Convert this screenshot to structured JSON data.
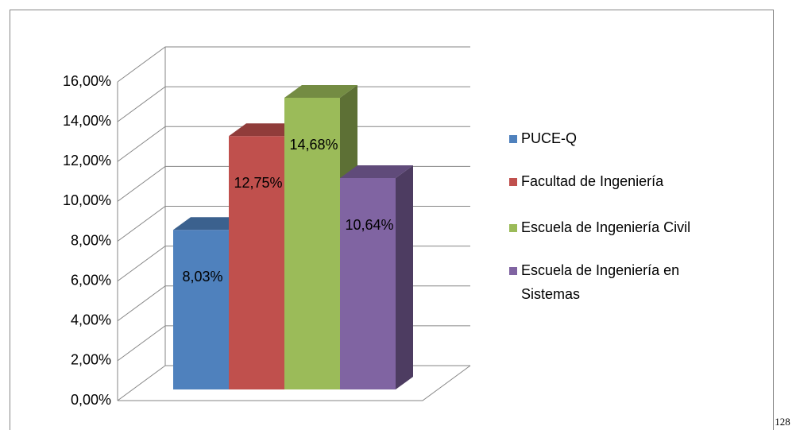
{
  "chart_data": {
    "type": "bar",
    "categories": [
      null
    ],
    "series": [
      {
        "name": "PUCE-Q",
        "color": "#4f81bd",
        "values": [
          8.03
        ],
        "value_labels": [
          "8,03%"
        ]
      },
      {
        "name": "Facultad de Ingeniería",
        "color": "#c0504d",
        "values": [
          12.75
        ],
        "value_labels": [
          "12,75%"
        ]
      },
      {
        "name": "Escuela de Ingeniería Civil",
        "color": "#9bbb59",
        "values": [
          14.68
        ],
        "value_labels": [
          "14,68%"
        ]
      },
      {
        "name": "Escuela de Ingeniería en Sistemas",
        "color": "#8064a2",
        "values": [
          10.64
        ],
        "value_labels": [
          "10,64%"
        ]
      }
    ],
    "ylim": [
      0,
      16
    ],
    "yticks": [
      {
        "value": 0,
        "label": "0,00%"
      },
      {
        "value": 2,
        "label": "2,00%"
      },
      {
        "value": 4,
        "label": "4,00%"
      },
      {
        "value": 6,
        "label": "6,00%"
      },
      {
        "value": 8,
        "label": "8,00%"
      },
      {
        "value": 10,
        "label": "10,00%"
      },
      {
        "value": 12,
        "label": "12,00%"
      },
      {
        "value": 14,
        "label": "14,00%"
      },
      {
        "value": 16,
        "label": "16,00%"
      }
    ],
    "grid": true,
    "legend": "right",
    "view": "3d"
  },
  "page_number": "128"
}
